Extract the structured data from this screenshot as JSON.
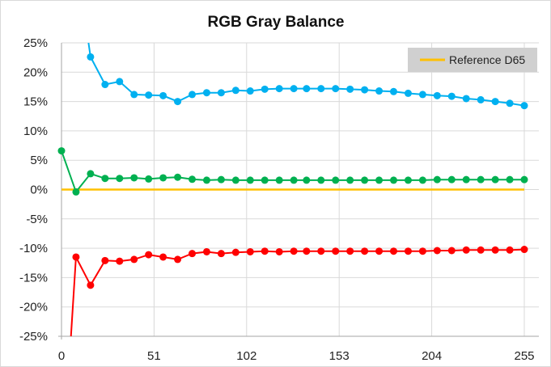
{
  "chart_data": {
    "type": "line",
    "title": "RGB Gray Balance",
    "xlabel": "",
    "ylabel": "",
    "xlim": [
      0,
      255
    ],
    "ylim": [
      -25,
      25
    ],
    "x_ticks": [
      0,
      51,
      102,
      153,
      204,
      255
    ],
    "y_ticks": [
      25,
      20,
      15,
      10,
      5,
      0,
      -5,
      -10,
      -15,
      -20,
      -25
    ],
    "y_tick_labels": [
      "25%",
      "20%",
      "15%",
      "10%",
      "5%",
      "0%",
      "-5%",
      "-10%",
      "-15%",
      "-20%",
      "-25%"
    ],
    "grid": true,
    "legend_position": "top-right",
    "x": [
      0,
      8,
      16,
      24,
      32,
      40,
      48,
      56,
      64,
      72,
      80,
      88,
      96,
      104,
      112,
      120,
      128,
      135,
      143,
      151,
      159,
      167,
      175,
      183,
      191,
      199,
      207,
      215,
      223,
      231,
      239,
      247,
      255
    ],
    "series": [
      {
        "color": "#00b0f0",
        "markers": true,
        "values": [
          null,
          40,
          22.6,
          17.9,
          18.4,
          16.2,
          16.1,
          16.0,
          15.0,
          16.2,
          16.5,
          16.5,
          16.9,
          16.8,
          17.1,
          17.2,
          17.2,
          17.2,
          17.2,
          17.2,
          17.1,
          17.0,
          16.8,
          16.7,
          16.4,
          16.2,
          16.0,
          15.9,
          15.5,
          15.3,
          15.0,
          14.7,
          14.3
        ]
      },
      {
        "color": "#00b050",
        "markers": true,
        "values": [
          6.6,
          -0.4,
          2.7,
          1.9,
          1.9,
          2.0,
          1.8,
          2.0,
          2.1,
          1.75,
          1.6,
          1.7,
          1.6,
          1.6,
          1.6,
          1.6,
          1.6,
          1.6,
          1.6,
          1.6,
          1.6,
          1.6,
          1.6,
          1.6,
          1.6,
          1.6,
          1.7,
          1.7,
          1.7,
          1.7,
          1.7,
          1.7,
          1.7
        ]
      },
      {
        "color": "#ff0000",
        "markers": true,
        "values": [
          -50,
          -11.5,
          -16.3,
          -12.1,
          -12.2,
          -11.9,
          -11.1,
          -11.5,
          -11.9,
          -10.9,
          -10.6,
          -10.9,
          -10.7,
          -10.6,
          -10.5,
          -10.6,
          -10.5,
          -10.5,
          -10.5,
          -10.5,
          -10.5,
          -10.5,
          -10.5,
          -10.5,
          -10.5,
          -10.5,
          -10.4,
          -10.4,
          -10.3,
          -10.3,
          -10.3,
          -10.3,
          -10.2
        ]
      },
      {
        "name": "Reference D65",
        "color": "#ffc000",
        "markers": false,
        "values": [
          0,
          0,
          0,
          0,
          0,
          0,
          0,
          0,
          0,
          0,
          0,
          0,
          0,
          0,
          0,
          0,
          0,
          0,
          0,
          0,
          0,
          0,
          0,
          0,
          0,
          0,
          0,
          0,
          0,
          0,
          0,
          0,
          0
        ]
      }
    ],
    "legend": {
      "entries": [
        "Reference D65"
      ],
      "background": "#d0d0d0"
    }
  }
}
